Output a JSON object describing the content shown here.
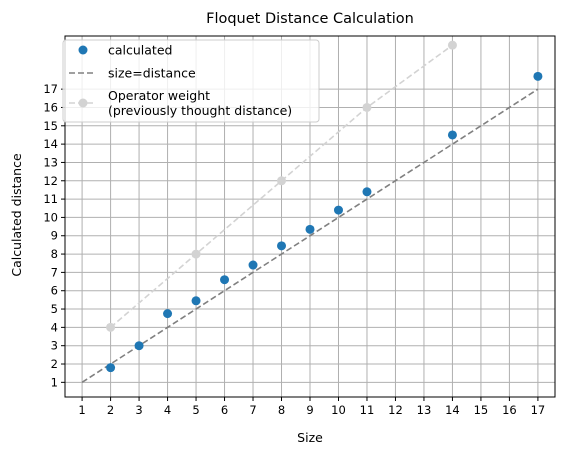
{
  "chart_data": {
    "type": "scatter",
    "title": "Floquet Distance Calculation",
    "xlabel": "Size",
    "ylabel": "Calculated distance",
    "xlim": [
      0.4,
      17.6
    ],
    "ylim": [
      0.2,
      19.9
    ],
    "xticks": [
      1,
      2,
      3,
      4,
      5,
      6,
      7,
      8,
      9,
      10,
      11,
      12,
      13,
      14,
      15,
      16,
      17
    ],
    "yticks": [
      1,
      2,
      3,
      4,
      5,
      6,
      7,
      8,
      9,
      10,
      11,
      12,
      13,
      14,
      15,
      16,
      17
    ],
    "grid": true,
    "legend_position": "top-left",
    "series": [
      {
        "name": "calculated",
        "style": "points",
        "color": "#1f77b4",
        "x": [
          2,
          3,
          4,
          5,
          6,
          7,
          8,
          9,
          10,
          11,
          14,
          17
        ],
        "y": [
          1.8,
          3.0,
          4.75,
          5.45,
          6.6,
          7.4,
          8.45,
          9.35,
          10.4,
          11.4,
          14.5,
          17.7
        ]
      },
      {
        "name": "size=distance",
        "style": "dashed-line",
        "color": "#808080",
        "x": [
          1,
          17
        ],
        "y": [
          1,
          17
        ]
      },
      {
        "name": "Operator weight\n(previously thought distance)",
        "style": "dashed-line-points",
        "color": "#d3d3d3",
        "x": [
          2,
          5,
          8,
          11,
          14
        ],
        "y": [
          4,
          8,
          12,
          16,
          19.4
        ]
      }
    ]
  }
}
